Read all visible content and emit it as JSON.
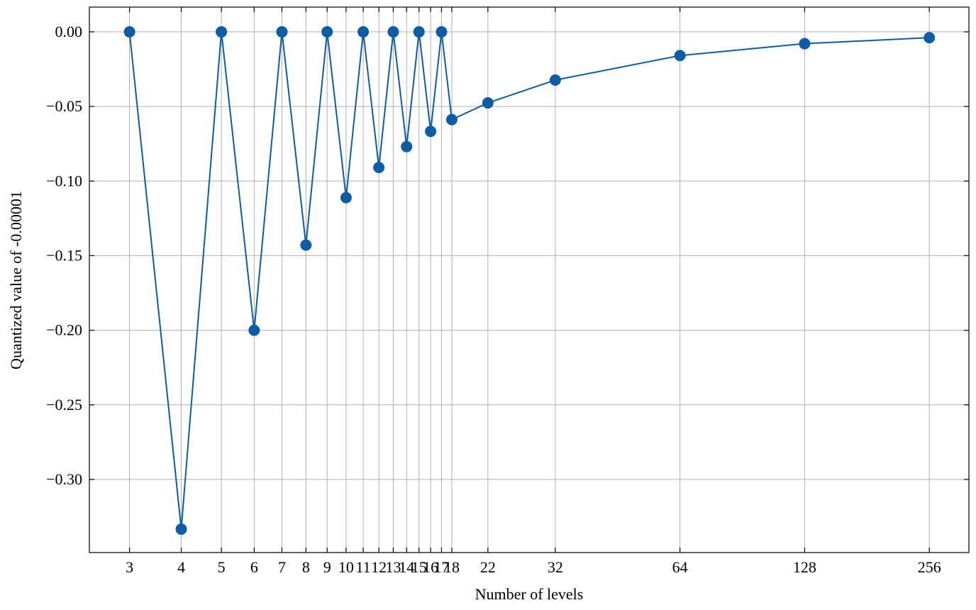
{
  "chart_data": {
    "type": "line",
    "xlabel": "Number of levels",
    "ylabel": "Quantized value of -0.00001",
    "x": [
      3,
      4,
      5,
      6,
      7,
      8,
      9,
      10,
      11,
      12,
      13,
      14,
      15,
      16,
      17,
      18,
      22,
      32,
      64,
      128,
      256
    ],
    "series": [
      {
        "color": "#0C5DA5",
        "values": [
          0,
          -0.3333,
          0,
          -0.2,
          0,
          -0.1429,
          0,
          -0.1111,
          0,
          -0.0909,
          0,
          -0.0769,
          0,
          -0.0667,
          0,
          -0.0588,
          -0.0476,
          -0.0323,
          -0.0159,
          -0.0079,
          -0.0039
        ]
      }
    ],
    "xscale": "log",
    "xlim": [
      2.4,
      319
    ],
    "ylim": [
      -0.349,
      0.0166
    ],
    "xticks": [
      3,
      4,
      5,
      6,
      7,
      8,
      9,
      10,
      11,
      12,
      13,
      14,
      15,
      16,
      17,
      18,
      22,
      32,
      64,
      128,
      256
    ],
    "yticks": [
      {
        "value": 0,
        "label": "0.00"
      },
      {
        "value": -0.05,
        "label": "−0.05"
      },
      {
        "value": -0.1,
        "label": "−0.10"
      },
      {
        "value": -0.15,
        "label": "−0.15"
      },
      {
        "value": -0.2,
        "label": "−0.20"
      },
      {
        "value": -0.25,
        "label": "−0.25"
      },
      {
        "value": -0.3,
        "label": "−0.30"
      }
    ],
    "grid": true
  }
}
